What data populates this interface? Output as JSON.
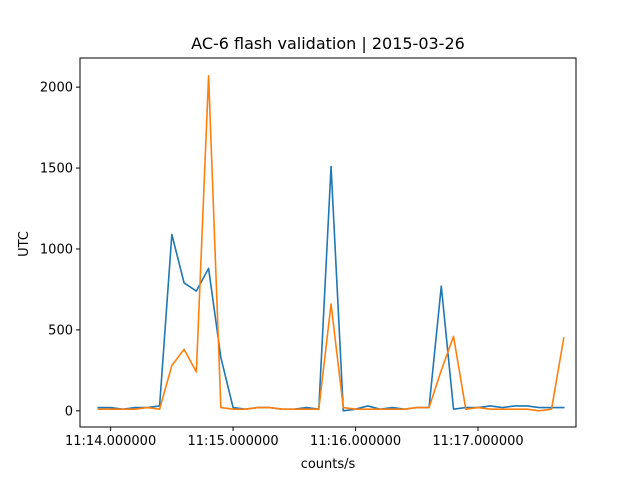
{
  "chart_data": {
    "type": "line",
    "title": "AC-6 flash validation | 2015-03-26",
    "xlabel": "counts/s",
    "ylabel": "UTC",
    "x_unit": "time",
    "x": [
      "11:13:54",
      "11:14:00",
      "11:14:06",
      "11:14:12",
      "11:14:18",
      "11:14:24",
      "11:14:30",
      "11:14:36",
      "11:14:42",
      "11:14:48",
      "11:14:54",
      "11:15:00",
      "11:15:06",
      "11:15:12",
      "11:15:18",
      "11:15:24",
      "11:15:30",
      "11:15:36",
      "11:15:42",
      "11:15:48",
      "11:15:54",
      "11:16:00",
      "11:16:06",
      "11:16:12",
      "11:16:18",
      "11:16:24",
      "11:16:30",
      "11:16:36",
      "11:16:42",
      "11:16:48",
      "11:16:54",
      "11:17:00",
      "11:17:06",
      "11:17:12",
      "11:17:18",
      "11:17:24",
      "11:17:30",
      "11:17:36",
      "11:17:42"
    ],
    "xlim": [
      "11:13:45",
      "11:17:48"
    ],
    "xticks": [
      "11:14:00",
      "11:15:00",
      "11:16:00",
      "11:17:00"
    ],
    "xtick_labels": [
      "11:14.000000",
      "11:15.000000",
      "11:16.000000",
      "11:17.000000"
    ],
    "ylim": [
      -100,
      2180
    ],
    "yticks": [
      0,
      500,
      1000,
      1500,
      2000
    ],
    "series": [
      {
        "color": "#1f77b4",
        "values": [
          20,
          20,
          10,
          20,
          20,
          30,
          1090,
          790,
          740,
          880,
          330,
          20,
          10,
          20,
          20,
          10,
          10,
          20,
          10,
          1510,
          0,
          10,
          30,
          10,
          20,
          10,
          20,
          20,
          770,
          10,
          20,
          20,
          30,
          20,
          30,
          30,
          20,
          20,
          20
        ]
      },
      {
        "color": "#ff7f0e",
        "values": [
          10,
          10,
          10,
          10,
          20,
          10,
          280,
          380,
          240,
          2070,
          20,
          10,
          10,
          20,
          20,
          10,
          10,
          10,
          10,
          660,
          20,
          10,
          10,
          10,
          10,
          10,
          20,
          20,
          250,
          460,
          10,
          20,
          10,
          10,
          10,
          10,
          0,
          10,
          450
        ]
      }
    ],
    "grid": false,
    "legend": "none"
  }
}
